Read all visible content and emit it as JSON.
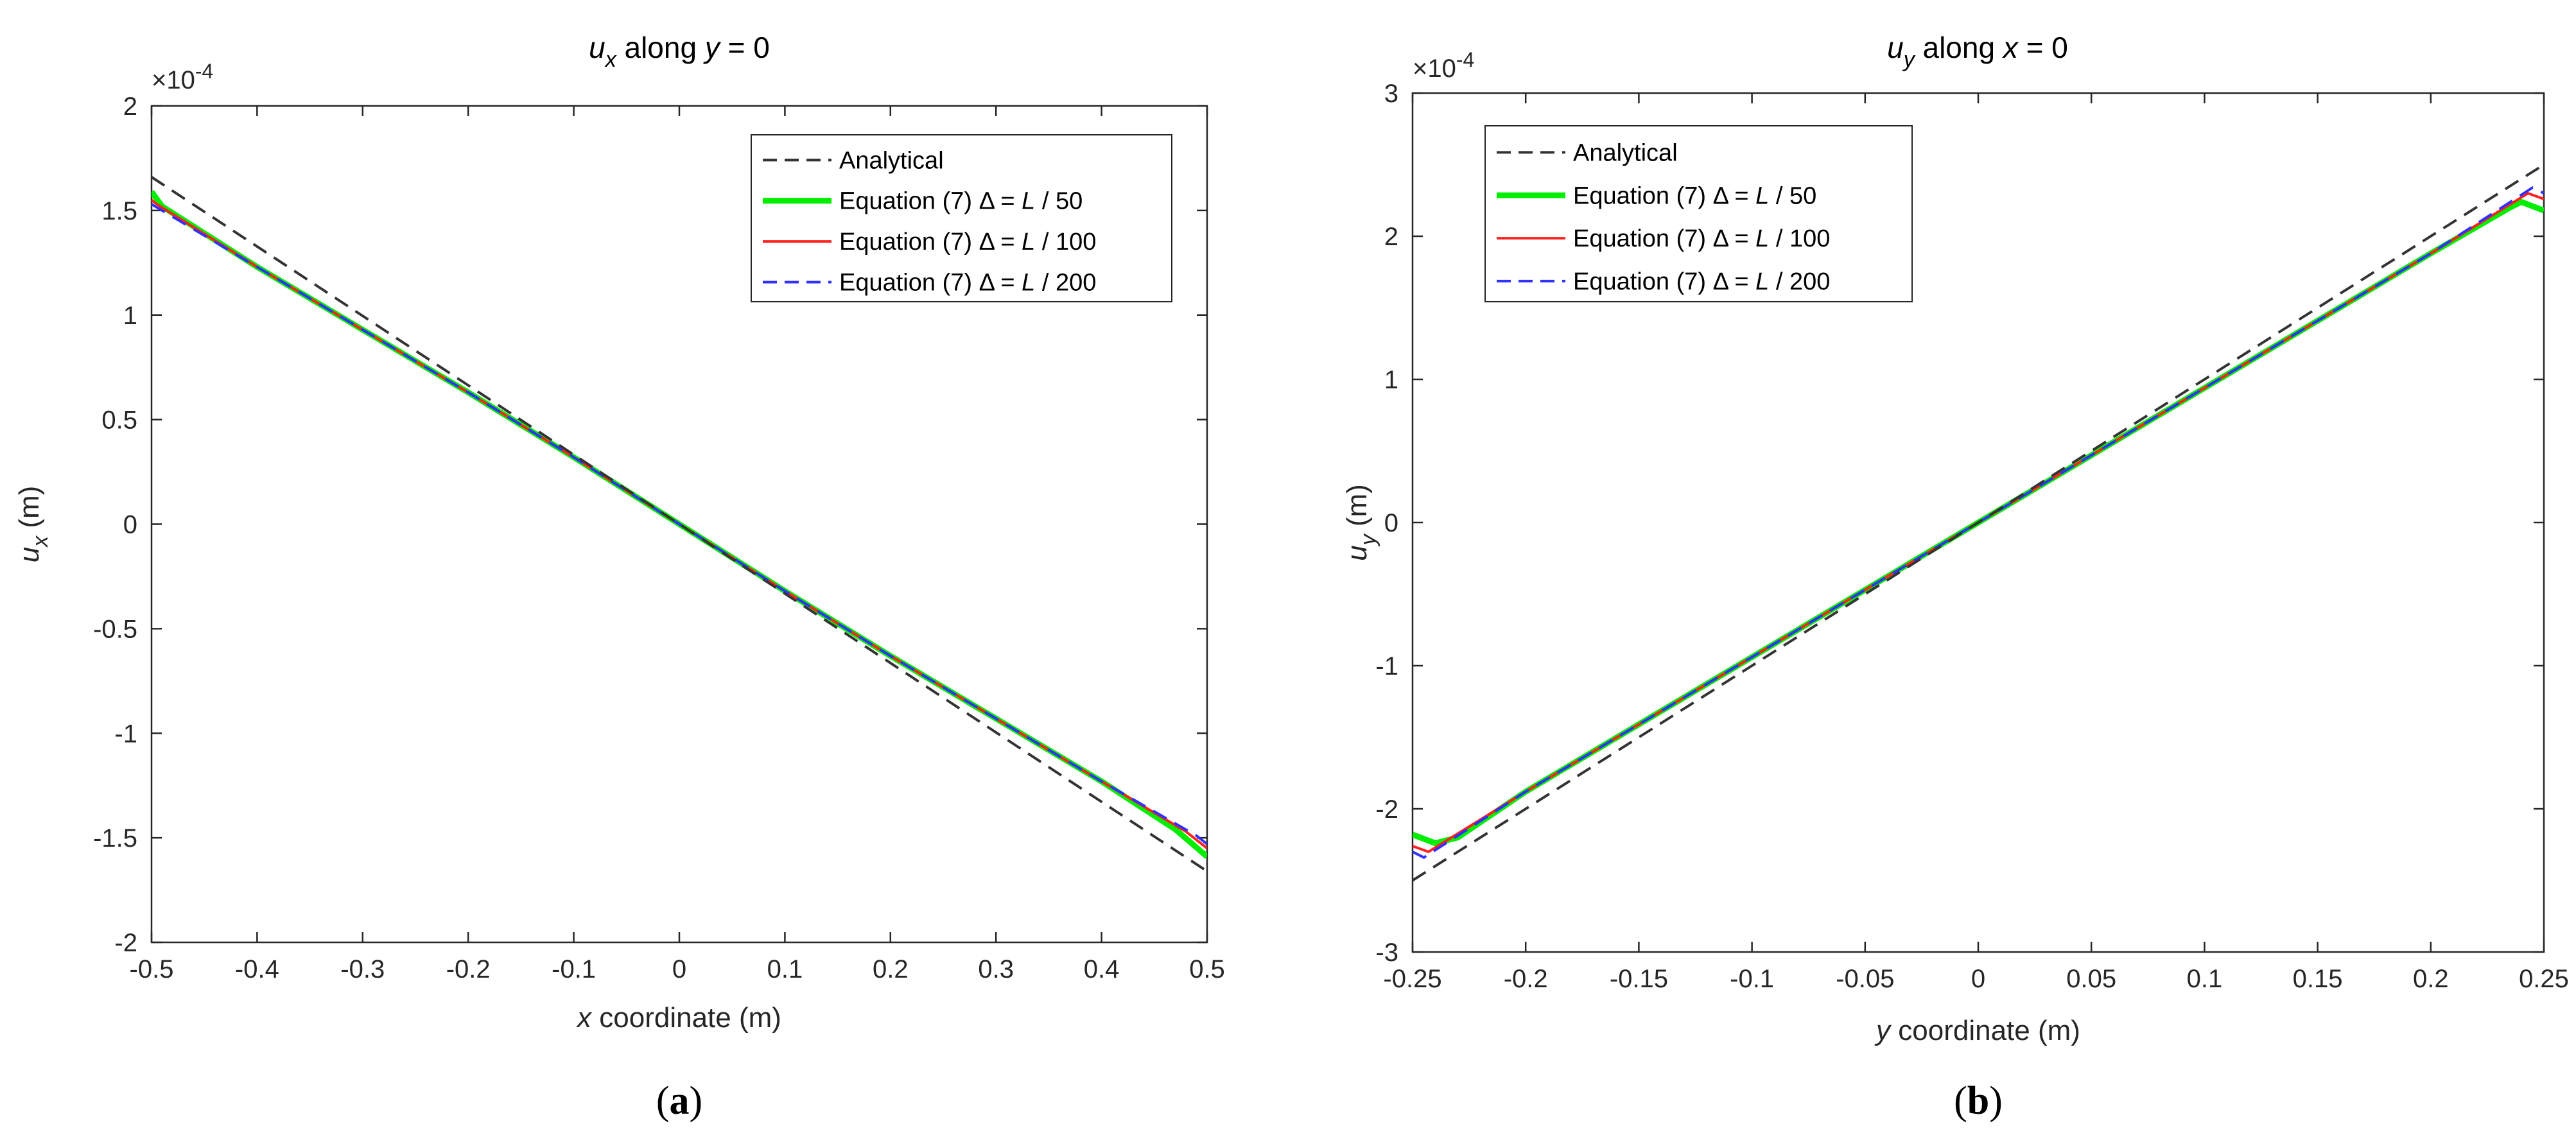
{
  "chart_data": [
    {
      "type": "line",
      "panel": "(a)",
      "caption": {
        "open": "(",
        "letter": "a",
        "close": ")"
      },
      "title": {
        "sym": "u",
        "sub": "x",
        "text": " along ",
        "var": "y",
        "eq": " = 0"
      },
      "xlabel": {
        "var": "x",
        "text": " coordinate (m)"
      },
      "ylabel": {
        "sym": "u",
        "sub": "x",
        "unit": " (m)"
      },
      "exponent": {
        "base": "×10",
        "power": "-4"
      },
      "xlim": [
        -0.5,
        0.5
      ],
      "ylim": [
        -2,
        2
      ],
      "xticks": [
        -0.5,
        -0.4,
        -0.3,
        -0.2,
        -0.1,
        0,
        0.1,
        0.2,
        0.3,
        0.4,
        0.5
      ],
      "xtick_labels": [
        "-0.5",
        "-0.4",
        "-0.3",
        "-0.2",
        "-0.1",
        "0",
        "0.1",
        "0.2",
        "0.3",
        "0.4",
        "0.5"
      ],
      "yticks": [
        -2,
        -1.5,
        -1,
        -0.5,
        0,
        0.5,
        1,
        1.5,
        2
      ],
      "ytick_labels": [
        "-2",
        "-1.5",
        "-1",
        "-0.5",
        "0",
        "0.5",
        "1",
        "1.5",
        "2"
      ],
      "legend_position": "top-right",
      "series": [
        {
          "name": "Analytical",
          "label_pre": "Analytical",
          "label_var": "",
          "label_post": "",
          "color": "#333333",
          "style": "dashed",
          "x": [
            -0.5,
            0.5
          ],
          "y": [
            1.66,
            -1.66
          ]
        },
        {
          "name": "Equation (7) Δ = L / 50",
          "label_pre": "Equation (7) Δ = ",
          "label_var": "L",
          "label_post": " / 50",
          "color": "#00ee00",
          "style": "solid-thick",
          "x": [
            -0.5,
            -0.49,
            -0.4,
            -0.3,
            -0.2,
            -0.1,
            0,
            0.1,
            0.2,
            0.3,
            0.4,
            0.47,
            0.5
          ],
          "y": [
            1.59,
            1.52,
            1.23,
            0.93,
            0.63,
            0.32,
            0,
            -0.32,
            -0.63,
            -0.93,
            -1.23,
            -1.46,
            -1.59
          ]
        },
        {
          "name": "Equation (7) Δ = L / 100",
          "label_pre": "Equation (7) Δ = ",
          "label_var": "L",
          "label_post": " / 100",
          "color": "#ff2020",
          "style": "solid",
          "x": [
            -0.5,
            -0.495,
            -0.4,
            -0.3,
            -0.2,
            -0.1,
            0,
            0.1,
            0.2,
            0.3,
            0.4,
            0.48,
            0.5
          ],
          "y": [
            1.55,
            1.53,
            1.23,
            0.93,
            0.63,
            0.32,
            0,
            -0.32,
            -0.63,
            -0.93,
            -1.23,
            -1.47,
            -1.55
          ]
        },
        {
          "name": "Equation (7) Δ = L / 200",
          "label_pre": "Equation (7) Δ = ",
          "label_var": "L",
          "label_post": " / 200",
          "color": "#3030ff",
          "style": "dashed",
          "x": [
            -0.5,
            -0.4,
            -0.3,
            -0.2,
            -0.1,
            0,
            0.1,
            0.2,
            0.3,
            0.4,
            0.49,
            0.5
          ],
          "y": [
            1.53,
            1.23,
            0.93,
            0.63,
            0.32,
            0,
            -0.32,
            -0.63,
            -0.93,
            -1.23,
            -1.49,
            -1.53
          ]
        }
      ]
    },
    {
      "type": "line",
      "panel": "(b)",
      "caption": {
        "open": "(",
        "letter": "b",
        "close": ")"
      },
      "title": {
        "sym": "u",
        "sub": "y",
        "text": " along ",
        "var": "x",
        "eq": " = 0"
      },
      "xlabel": {
        "var": "y",
        "text": " coordinate (m)"
      },
      "ylabel": {
        "sym": "u",
        "sub": "y",
        "unit": " (m)"
      },
      "exponent": {
        "base": "×10",
        "power": "-4"
      },
      "xlim": [
        -0.25,
        0.25
      ],
      "ylim": [
        -3,
        3
      ],
      "xticks": [
        -0.25,
        -0.2,
        -0.15,
        -0.1,
        -0.05,
        0,
        0.05,
        0.1,
        0.15,
        0.2,
        0.25
      ],
      "xtick_labels": [
        "-0.25",
        "-0.2",
        "-0.15",
        "-0.1",
        "-0.05",
        "0",
        "0.05",
        "0.1",
        "0.15",
        "0.2",
        "0.25"
      ],
      "yticks": [
        -3,
        -2,
        -1,
        0,
        1,
        2,
        3
      ],
      "ytick_labels": [
        "-3",
        "-2",
        "-1",
        "0",
        "1",
        "2",
        "3"
      ],
      "legend_position": "top-left",
      "series": [
        {
          "name": "Analytical",
          "label_pre": "Analytical",
          "label_var": "",
          "label_post": "",
          "color": "#333333",
          "style": "dashed",
          "x": [
            -0.25,
            0.25
          ],
          "y": [
            -2.5,
            2.5
          ]
        },
        {
          "name": "Equation (7) Δ = L / 50",
          "label_pre": "Equation (7) Δ = ",
          "label_var": "L",
          "label_post": " / 50",
          "color": "#00ee00",
          "style": "solid-thick",
          "x": [
            -0.25,
            -0.24,
            -0.23,
            -0.2,
            -0.1,
            0,
            0.1,
            0.2,
            0.235,
            0.24,
            0.25
          ],
          "y": [
            -2.18,
            -2.24,
            -2.2,
            -1.88,
            -0.94,
            0,
            0.94,
            1.88,
            2.2,
            2.24,
            2.18
          ]
        },
        {
          "name": "Equation (7) Δ = L / 100",
          "label_pre": "Equation (7) Δ = ",
          "label_var": "L",
          "label_post": " / 100",
          "color": "#ff2020",
          "style": "solid",
          "x": [
            -0.25,
            -0.243,
            -0.2,
            -0.1,
            0,
            0.1,
            0.2,
            0.243,
            0.25
          ],
          "y": [
            -2.26,
            -2.3,
            -1.88,
            -0.94,
            0,
            0.94,
            1.88,
            2.3,
            2.26
          ]
        },
        {
          "name": "Equation (7) Δ = L / 200",
          "label_pre": "Equation (7) Δ = ",
          "label_var": "L",
          "label_post": " / 200",
          "color": "#3030ff",
          "style": "dashed",
          "x": [
            -0.25,
            -0.245,
            -0.2,
            -0.1,
            0,
            0.1,
            0.2,
            0.245,
            0.25
          ],
          "y": [
            -2.3,
            -2.34,
            -1.88,
            -0.94,
            0,
            0.94,
            1.88,
            2.34,
            2.3
          ]
        }
      ]
    }
  ]
}
